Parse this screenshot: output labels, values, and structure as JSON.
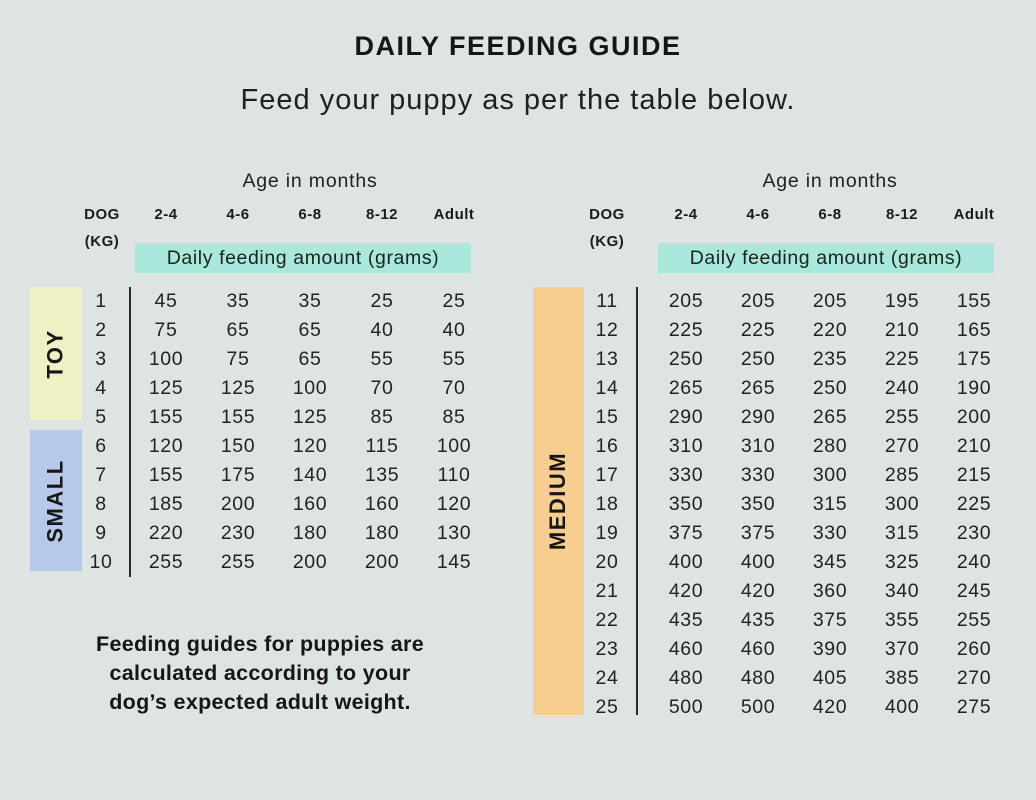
{
  "page": {
    "title": "DAILY FEEDING GUIDE",
    "subtitle": "Feed your puppy as per the table below.",
    "footnote_lines": [
      "Feeding guides for puppies are",
      "calculated according to your",
      "dog’s expected adult weight."
    ]
  },
  "colors": {
    "background": "#dde4e2",
    "highlight_teal": "#a9e9db",
    "toy_yellow": "#eff0c4",
    "small_blue": "#b7c8e9",
    "medium_orange": "#f8cd90",
    "line": "#2a2a26",
    "text": "#1e1e1c"
  },
  "tables": [
    {
      "age_header": "Age in months",
      "dog_label": "DOG",
      "kg_label": "(KG)",
      "age_columns": [
        "2-4",
        "4-6",
        "6-8",
        "8-12",
        "Adult"
      ],
      "band_label": "Daily feeding amount (grams)",
      "groups": [
        {
          "name": "TOY",
          "color": "toy_yellow"
        },
        {
          "name": "SMALL",
          "color": "small_blue"
        }
      ],
      "rows": [
        {
          "kg": "1",
          "values": [
            "45",
            "35",
            "35",
            "25",
            "25"
          ]
        },
        {
          "kg": "2",
          "values": [
            "75",
            "65",
            "65",
            "40",
            "40"
          ]
        },
        {
          "kg": "3",
          "values": [
            "100",
            "75",
            "65",
            "55",
            "55"
          ]
        },
        {
          "kg": "4",
          "values": [
            "125",
            "125",
            "100",
            "70",
            "70"
          ]
        },
        {
          "kg": "5",
          "values": [
            "155",
            "155",
            "125",
            "85",
            "85"
          ]
        },
        {
          "kg": "6",
          "values": [
            "120",
            "150",
            "120",
            "115",
            "100"
          ]
        },
        {
          "kg": "7",
          "values": [
            "155",
            "175",
            "140",
            "135",
            "110"
          ]
        },
        {
          "kg": "8",
          "values": [
            "185",
            "200",
            "160",
            "160",
            "120"
          ]
        },
        {
          "kg": "9",
          "values": [
            "220",
            "230",
            "180",
            "180",
            "130"
          ]
        },
        {
          "kg": "10",
          "values": [
            "255",
            "255",
            "200",
            "200",
            "145"
          ]
        }
      ]
    },
    {
      "age_header": "Age in months",
      "dog_label": "DOG",
      "kg_label": "(KG)",
      "age_columns": [
        "2-4",
        "4-6",
        "6-8",
        "8-12",
        "Adult"
      ],
      "band_label": "Daily feeding amount (grams)",
      "groups": [
        {
          "name": "MEDIUM",
          "color": "medium_orange"
        }
      ],
      "rows": [
        {
          "kg": "11",
          "values": [
            "205",
            "205",
            "205",
            "195",
            "155"
          ]
        },
        {
          "kg": "12",
          "values": [
            "225",
            "225",
            "220",
            "210",
            "165"
          ]
        },
        {
          "kg": "13",
          "values": [
            "250",
            "250",
            "235",
            "225",
            "175"
          ]
        },
        {
          "kg": "14",
          "values": [
            "265",
            "265",
            "250",
            "240",
            "190"
          ]
        },
        {
          "kg": "15",
          "values": [
            "290",
            "290",
            "265",
            "255",
            "200"
          ]
        },
        {
          "kg": "16",
          "values": [
            "310",
            "310",
            "280",
            "270",
            "210"
          ]
        },
        {
          "kg": "17",
          "values": [
            "330",
            "330",
            "300",
            "285",
            "215"
          ]
        },
        {
          "kg": "18",
          "values": [
            "350",
            "350",
            "315",
            "300",
            "225"
          ]
        },
        {
          "kg": "19",
          "values": [
            "375",
            "375",
            "330",
            "315",
            "230"
          ]
        },
        {
          "kg": "20",
          "values": [
            "400",
            "400",
            "345",
            "325",
            "240"
          ]
        },
        {
          "kg": "21",
          "values": [
            "420",
            "420",
            "360",
            "340",
            "245"
          ]
        },
        {
          "kg": "22",
          "values": [
            "435",
            "435",
            "375",
            "355",
            "255"
          ]
        },
        {
          "kg": "23",
          "values": [
            "460",
            "460",
            "390",
            "370",
            "260"
          ]
        },
        {
          "kg": "24",
          "values": [
            "480",
            "480",
            "405",
            "385",
            "270"
          ]
        },
        {
          "kg": "25",
          "values": [
            "500",
            "500",
            "420",
            "400",
            "275"
          ]
        }
      ]
    }
  ]
}
